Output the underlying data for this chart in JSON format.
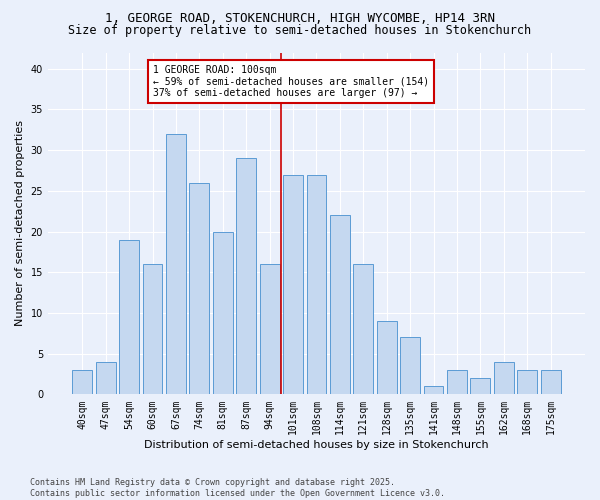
{
  "title": "1, GEORGE ROAD, STOKENCHURCH, HIGH WYCOMBE, HP14 3RN",
  "subtitle": "Size of property relative to semi-detached houses in Stokenchurch",
  "xlabel": "Distribution of semi-detached houses by size in Stokenchurch",
  "ylabel": "Number of semi-detached properties",
  "categories": [
    "40sqm",
    "47sqm",
    "54sqm",
    "60sqm",
    "67sqm",
    "74sqm",
    "81sqm",
    "87sqm",
    "94sqm",
    "101sqm",
    "108sqm",
    "114sqm",
    "121sqm",
    "128sqm",
    "135sqm",
    "141sqm",
    "148sqm",
    "155sqm",
    "162sqm",
    "168sqm",
    "175sqm"
  ],
  "values": [
    3,
    4,
    19,
    16,
    32,
    26,
    20,
    29,
    16,
    27,
    27,
    22,
    16,
    9,
    7,
    1,
    3,
    2,
    4,
    3,
    3
  ],
  "bar_color": "#c5d8f0",
  "bar_edge_color": "#5b9bd5",
  "highlight_index": 9,
  "highlight_line_color": "#cc0000",
  "annotation_text": "1 GEORGE ROAD: 100sqm\n← 59% of semi-detached houses are smaller (154)\n37% of semi-detached houses are larger (97) →",
  "annotation_box_color": "#ffffff",
  "annotation_box_edge_color": "#cc0000",
  "ylim": [
    0,
    42
  ],
  "yticks": [
    0,
    5,
    10,
    15,
    20,
    25,
    30,
    35,
    40
  ],
  "footnote": "Contains HM Land Registry data © Crown copyright and database right 2025.\nContains public sector information licensed under the Open Government Licence v3.0.",
  "bg_color": "#eaf0fb",
  "plot_bg_color": "#eaf0fb",
  "grid_color": "#ffffff",
  "title_fontsize": 9,
  "subtitle_fontsize": 8.5,
  "label_fontsize": 8,
  "tick_fontsize": 7,
  "annot_fontsize": 7,
  "footnote_fontsize": 6
}
